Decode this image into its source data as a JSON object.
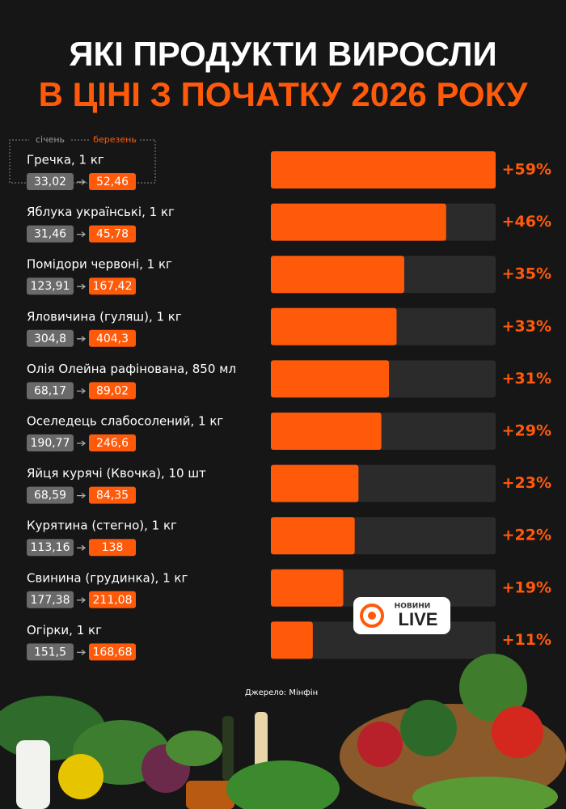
{
  "header": {
    "line1": "ЯКІ ПРОДУКТИ ВИРОСЛИ",
    "line2": "В ЦІНІ З ПОЧАТКУ 2026 РОКУ"
  },
  "legend": {
    "before": "січень",
    "after": "березень"
  },
  "chart_data": {
    "type": "bar",
    "orientation": "horizontal",
    "categories": [
      "Гречка, 1 кг",
      "Яблука українські, 1 кг",
      "Помідори червоні, 1 кг",
      "Яловичина (гуляш), 1 кг",
      "Олія Олейна рафінована, 850 мл",
      "Оселедець слабосолений, 1 кг",
      "Яйця курячі (Квочка), 10 шт",
      "Курятина (стегно), 1 кг",
      "Свинина (грудинка), 1 кг",
      "Огірки, 1 кг"
    ],
    "values": [
      59,
      46,
      35,
      33,
      31,
      29,
      23,
      22,
      19,
      11
    ],
    "value_labels": [
      "+59%",
      "+46%",
      "+35%",
      "+33%",
      "+31%",
      "+29%",
      "+23%",
      "+22%",
      "+19%",
      "+11%"
    ],
    "before_prices": [
      "33,02",
      "31,46",
      "123,91",
      "304,8",
      "68,17",
      "190,77",
      "68,59",
      "113,16",
      "177,38",
      "151,5"
    ],
    "after_prices": [
      "52,46",
      "45,78",
      "167,42",
      "404,3",
      "89,02",
      "246,6",
      "84,35",
      "138",
      "211,08",
      "168,68"
    ],
    "xlim": [
      0,
      59
    ],
    "color": "#ff5a0a",
    "track_color": "#2b2b2b"
  },
  "source": "Джерело: Мінфін",
  "logo": {
    "top": "НОВИНИ",
    "bottom": "LIVE"
  }
}
